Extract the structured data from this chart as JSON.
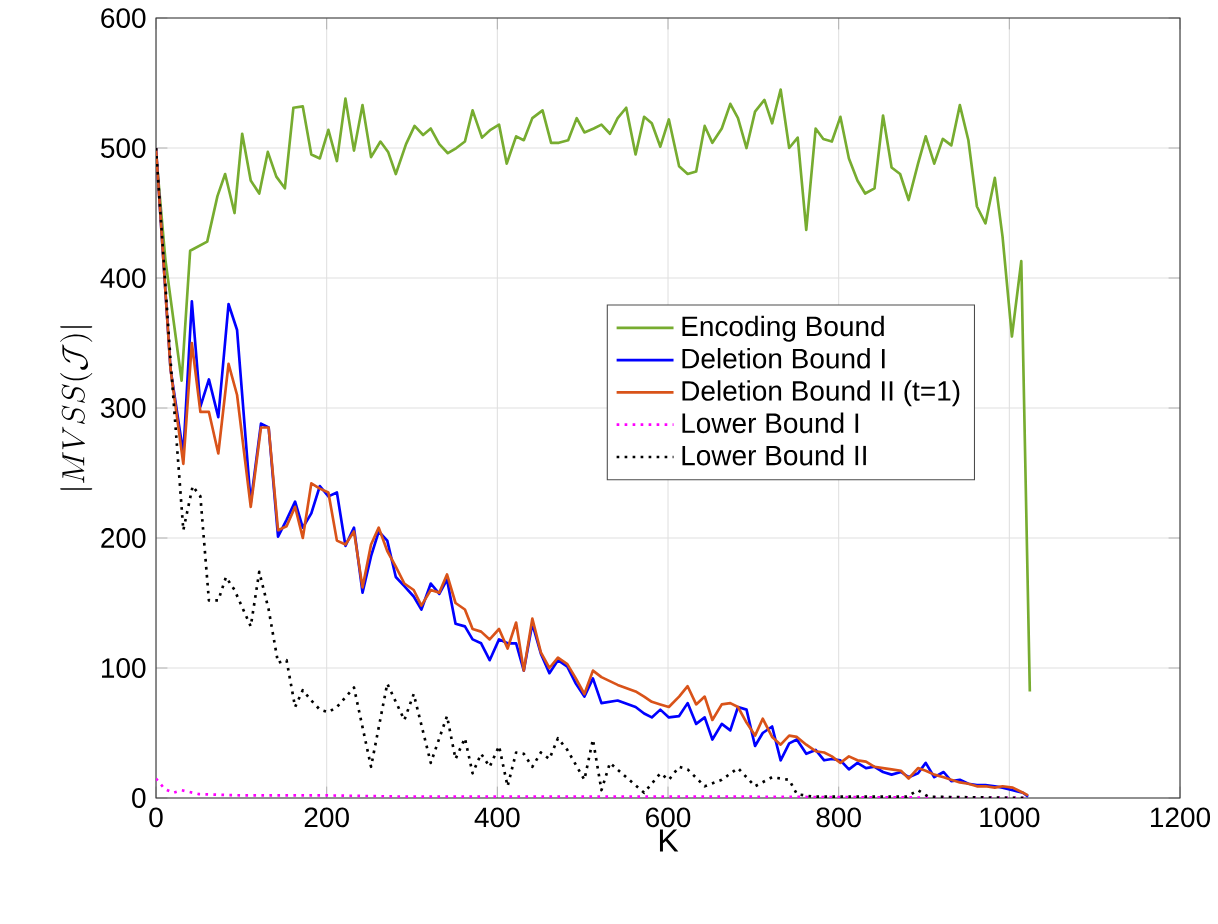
{
  "chart_data": {
    "type": "line",
    "xlabel": "K",
    "ylabel": "|MVSS(\\mathcal{J})|",
    "xlim": [
      0,
      1200
    ],
    "ylim": [
      0,
      600
    ],
    "xticks": [
      0,
      200,
      400,
      600,
      800,
      1000,
      1200
    ],
    "yticks": [
      0,
      100,
      200,
      300,
      400,
      500,
      600
    ],
    "grid": true,
    "legend": "center",
    "marker": "none",
    "series": [
      {
        "name": "Encoding Bound",
        "color": "#77ac30",
        "line_style": "solid",
        "x": [
          0,
          11,
          30,
          40,
          60,
          72,
          81,
          92,
          101,
          111,
          121,
          131,
          141,
          151,
          161,
          172,
          182,
          192,
          202,
          212,
          222,
          232,
          242,
          252,
          263,
          272,
          281,
          293,
          303,
          313,
          322,
          332,
          342,
          352,
          362,
          371,
          382,
          392,
          402,
          411,
          422,
          431,
          441,
          453,
          463,
          472,
          483,
          493,
          502,
          513,
          522,
          532,
          541,
          551,
          562,
          572,
          581,
          591,
          601,
          613,
          623,
          633,
          643,
          652,
          663,
          673,
          682,
          692,
          702,
          713,
          722,
          732,
          742,
          752,
          762,
          773,
          782,
          792,
          802,
          812,
          822,
          831,
          842,
          852,
          862,
          872,
          882,
          893,
          902,
          912,
          922,
          932,
          942,
          952,
          962,
          972,
          983,
          992,
          1003,
          1014,
          1024
        ],
        "values": [
          496,
          414,
          321,
          421,
          428,
          463,
          480,
          450,
          511,
          475,
          465,
          497,
          478,
          469,
          531,
          532,
          495,
          492,
          514,
          490,
          538,
          498,
          533,
          493,
          505,
          497,
          480,
          503,
          517,
          510,
          515,
          503,
          496,
          500,
          505,
          529,
          508,
          514,
          518,
          488,
          509,
          506,
          523,
          529,
          504,
          504,
          506,
          523,
          512,
          515,
          518,
          511,
          523,
          531,
          495,
          524,
          519,
          501,
          522,
          486,
          480,
          482,
          517,
          504,
          515,
          534,
          523,
          500,
          528,
          537,
          519,
          545,
          500,
          508,
          437,
          515,
          507,
          505,
          524,
          492,
          475,
          465,
          469,
          525,
          485,
          480,
          460,
          488,
          509,
          488,
          507,
          502,
          533,
          506,
          455,
          442,
          477,
          432,
          355,
          413,
          82
        ]
      },
      {
        "name": "Deletion Bound I",
        "color": "#0000ff",
        "line_style": "solid",
        "x": [
          0,
          17,
          32,
          42,
          52,
          62,
          73,
          85,
          95,
          111,
          123,
          132,
          143,
          153,
          163,
          172,
          182,
          192,
          202,
          212,
          222,
          232,
          242,
          252,
          261,
          271,
          281,
          291,
          302,
          311,
          322,
          332,
          341,
          351,
          362,
          371,
          381,
          391,
          402,
          412,
          422,
          431,
          441,
          451,
          461,
          471,
          482,
          492,
          502,
          512,
          522,
          541,
          562,
          572,
          581,
          591,
          601,
          613,
          623,
          633,
          643,
          652,
          663,
          673,
          682,
          692,
          702,
          711,
          722,
          732,
          742,
          751,
          762,
          773,
          783,
          792,
          802,
          812,
          822,
          832,
          842,
          852,
          862,
          873,
          882,
          893,
          902,
          912,
          923,
          932,
          942,
          952,
          962,
          972,
          983,
          992,
          1004,
          1016,
          1022
        ],
        "values": [
          500,
          330,
          265,
          382,
          301,
          322,
          293,
          380,
          360,
          227,
          288,
          285,
          201,
          214,
          228,
          208,
          219,
          240,
          232,
          235,
          194,
          208,
          158,
          186,
          205,
          198,
          170,
          163,
          155,
          145,
          165,
          157,
          168,
          134,
          132,
          122,
          119,
          106,
          122,
          119,
          119,
          98,
          134,
          111,
          96,
          106,
          101,
          88,
          78,
          92,
          73,
          75,
          70,
          65,
          62,
          68,
          62,
          63,
          73,
          57,
          62,
          45,
          57,
          52,
          70,
          68,
          40,
          50,
          55,
          29,
          42,
          45,
          34,
          37,
          29,
          30,
          29,
          22,
          27,
          23,
          24,
          20,
          18,
          20,
          16,
          19,
          27,
          16,
          20,
          13,
          14,
          11,
          10,
          10,
          9,
          8,
          6,
          4,
          1
        ]
      },
      {
        "name": "Deletion Bound II (t=1)",
        "color": "#d95319",
        "line_style": "solid",
        "x": [
          0,
          17,
          32,
          42,
          52,
          62,
          73,
          85,
          95,
          111,
          123,
          132,
          143,
          153,
          163,
          172,
          182,
          192,
          202,
          212,
          222,
          232,
          242,
          252,
          261,
          271,
          281,
          291,
          302,
          311,
          322,
          332,
          341,
          351,
          362,
          371,
          381,
          391,
          402,
          412,
          422,
          431,
          441,
          451,
          461,
          471,
          482,
          492,
          502,
          512,
          522,
          541,
          562,
          572,
          581,
          591,
          601,
          613,
          623,
          633,
          643,
          652,
          663,
          673,
          682,
          692,
          702,
          711,
          722,
          732,
          742,
          751,
          762,
          773,
          783,
          792,
          802,
          812,
          822,
          832,
          842,
          852,
          862,
          873,
          882,
          893,
          902,
          912,
          923,
          932,
          942,
          952,
          962,
          972,
          983,
          992,
          1004,
          1016,
          1022
        ],
        "values": [
          500,
          330,
          257,
          350,
          297,
          297,
          265,
          334,
          310,
          224,
          285,
          285,
          206,
          209,
          224,
          200,
          242,
          238,
          235,
          198,
          195,
          205,
          162,
          195,
          208,
          190,
          178,
          165,
          160,
          148,
          160,
          158,
          172,
          150,
          145,
          130,
          128,
          122,
          130,
          115,
          135,
          98,
          138,
          112,
          100,
          108,
          103,
          92,
          80,
          98,
          93,
          87,
          82,
          78,
          74,
          72,
          70,
          78,
          86,
          72,
          78,
          60,
          72,
          73,
          70,
          58,
          48,
          61,
          47,
          41,
          48,
          47,
          41,
          36,
          35,
          32,
          27,
          32,
          29,
          28,
          24,
          23,
          22,
          21,
          15,
          23,
          21,
          18,
          16,
          14,
          12,
          11,
          9,
          9,
          8,
          9,
          8,
          4,
          2
        ]
      },
      {
        "name": "Lower Bound I",
        "color": "#ff00ff",
        "line_style": "dotted",
        "x": [
          0,
          10,
          20,
          30,
          50,
          100,
          200,
          300,
          400,
          500,
          700,
          1022
        ],
        "values": [
          15,
          7,
          4,
          6,
          3,
          2,
          2,
          1,
          1,
          1,
          1,
          0
        ]
      },
      {
        "name": "Lower Bound II",
        "color": "#000000",
        "line_style": "dotted",
        "x": [
          0,
          17,
          32,
          43,
          52,
          62,
          73,
          82,
          92,
          111,
          121,
          132,
          143,
          153,
          163,
          172,
          182,
          192,
          202,
          212,
          232,
          252,
          271,
          291,
          302,
          322,
          341,
          351,
          362,
          371,
          381,
          391,
          402,
          412,
          422,
          431,
          441,
          451,
          461,
          471,
          482,
          502,
          512,
          522,
          532,
          551,
          572,
          591,
          601,
          613,
          623,
          643,
          663,
          682,
          702,
          722,
          742,
          751,
          770,
          880,
          893,
          905,
          1022
        ],
        "values": [
          500,
          337,
          206,
          240,
          232,
          152,
          152,
          170,
          160,
          132,
          174,
          145,
          104,
          106,
          70,
          83,
          75,
          68,
          66,
          70,
          85,
          24,
          88,
          60,
          80,
          27,
          63,
          30,
          46,
          19,
          34,
          24,
          40,
          9,
          35,
          34,
          24,
          35,
          30,
          46,
          37,
          14,
          45,
          6,
          27,
          16,
          4,
          19,
          14,
          24,
          22,
          9,
          14,
          23,
          9,
          16,
          14,
          3,
          1,
          1,
          6,
          1,
          0
        ]
      }
    ]
  }
}
